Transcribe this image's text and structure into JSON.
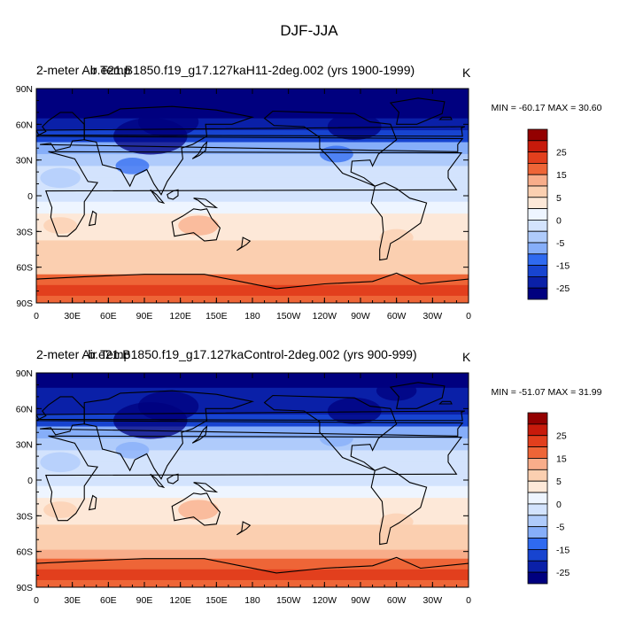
{
  "figure": {
    "title": "DJF-JJA"
  },
  "palette": [
    "#00007f",
    "#0a20a8",
    "#1744d0",
    "#2f6af0",
    "#5b8ff7",
    "#86aef9",
    "#afcbfb",
    "#d3e3fd",
    "#eef5ff",
    "#fde8d8",
    "#fbcfb0",
    "#f8ad8a",
    "#f48a5f",
    "#ee6537",
    "#e23f1d",
    "#c71a0b",
    "#930000"
  ],
  "chart_data": [
    {
      "type": "heatmap",
      "name": "top",
      "left_title": "2-meter Air Temp",
      "center_title": "b.e21.B1850.f19_g17.127kaH11-2deg.002 (yrs 1900-1999)",
      "units": "K",
      "min_max": "MIN = -60.17 MAX =  30.60",
      "min": -60.17,
      "max": 30.6,
      "xlabel": "",
      "ylabel": "",
      "x_ticks": [
        "0",
        "30E",
        "60E",
        "90E",
        "120E",
        "150E",
        "180",
        "150W",
        "120W",
        "90W",
        "60W",
        "30W",
        "0"
      ],
      "y_ticks": [
        "90N",
        "60N",
        "30N",
        "0",
        "30S",
        "60S",
        "90S"
      ],
      "xlim": [
        0,
        360
      ],
      "ylim": [
        -90,
        90
      ],
      "colorbar": {
        "levels": [
          -30,
          -25,
          -20,
          -15,
          -10,
          -5,
          0,
          2.5,
          5,
          10,
          15,
          20,
          25,
          30
        ],
        "labels": [
          "25",
          "15",
          "5",
          "0",
          "-5",
          "-15",
          "-25"
        ]
      },
      "lat_profile": [
        {
          "lat": 85,
          "value": -35
        },
        {
          "lat": 70,
          "value": -32
        },
        {
          "lat": 60,
          "value": -28
        },
        {
          "lat": 50,
          "value": -22
        },
        {
          "lat": 40,
          "value": -14
        },
        {
          "lat": 30,
          "value": -8
        },
        {
          "lat": 20,
          "value": -4
        },
        {
          "lat": 10,
          "value": -1.5
        },
        {
          "lat": 0,
          "value": -1
        },
        {
          "lat": -10,
          "value": 1
        },
        {
          "lat": -20,
          "value": 4
        },
        {
          "lat": -30,
          "value": 5
        },
        {
          "lat": -45,
          "value": 6
        },
        {
          "lat": -55,
          "value": 8
        },
        {
          "lat": -62,
          "value": 10
        },
        {
          "lat": -70,
          "value": 18
        },
        {
          "lat": -80,
          "value": 25
        },
        {
          "lat": -88,
          "value": 20
        }
      ]
    },
    {
      "type": "heatmap",
      "name": "bottom",
      "left_title": "2-meter Air Temp",
      "center_title": "b.e21.B1850.f19_g17.127kaControl-2deg.002 (yrs 900-999)",
      "units": "K",
      "min_max": "MIN = -51.07 MAX =  31.99",
      "min": -51.07,
      "max": 31.99,
      "xlabel": "",
      "ylabel": "",
      "x_ticks": [
        "0",
        "30E",
        "60E",
        "90E",
        "120E",
        "150E",
        "180",
        "150W",
        "120W",
        "90W",
        "60W",
        "30W",
        "0"
      ],
      "y_ticks": [
        "90N",
        "60N",
        "30N",
        "0",
        "30S",
        "60S",
        "90S"
      ],
      "xlim": [
        0,
        360
      ],
      "ylim": [
        -90,
        90
      ],
      "colorbar": {
        "levels": [
          -30,
          -25,
          -20,
          -15,
          -10,
          -5,
          0,
          2.5,
          5,
          10,
          15,
          20,
          25,
          30
        ],
        "labels": [
          "25",
          "15",
          "5",
          "0",
          "-5",
          "-15",
          "-25"
        ]
      },
      "lat_profile": [
        {
          "lat": 85,
          "value": -30
        },
        {
          "lat": 70,
          "value": -28
        },
        {
          "lat": 60,
          "value": -25
        },
        {
          "lat": 50,
          "value": -20
        },
        {
          "lat": 40,
          "value": -12
        },
        {
          "lat": 30,
          "value": -7
        },
        {
          "lat": 20,
          "value": -3.5
        },
        {
          "lat": 10,
          "value": -1
        },
        {
          "lat": 0,
          "value": -0.5
        },
        {
          "lat": -10,
          "value": 1.5
        },
        {
          "lat": -20,
          "value": 4
        },
        {
          "lat": -30,
          "value": 5
        },
        {
          "lat": -45,
          "value": 6
        },
        {
          "lat": -55,
          "value": 9
        },
        {
          "lat": -62,
          "value": 11
        },
        {
          "lat": -70,
          "value": 18
        },
        {
          "lat": -80,
          "value": 24
        },
        {
          "lat": -88,
          "value": 19
        }
      ]
    }
  ]
}
